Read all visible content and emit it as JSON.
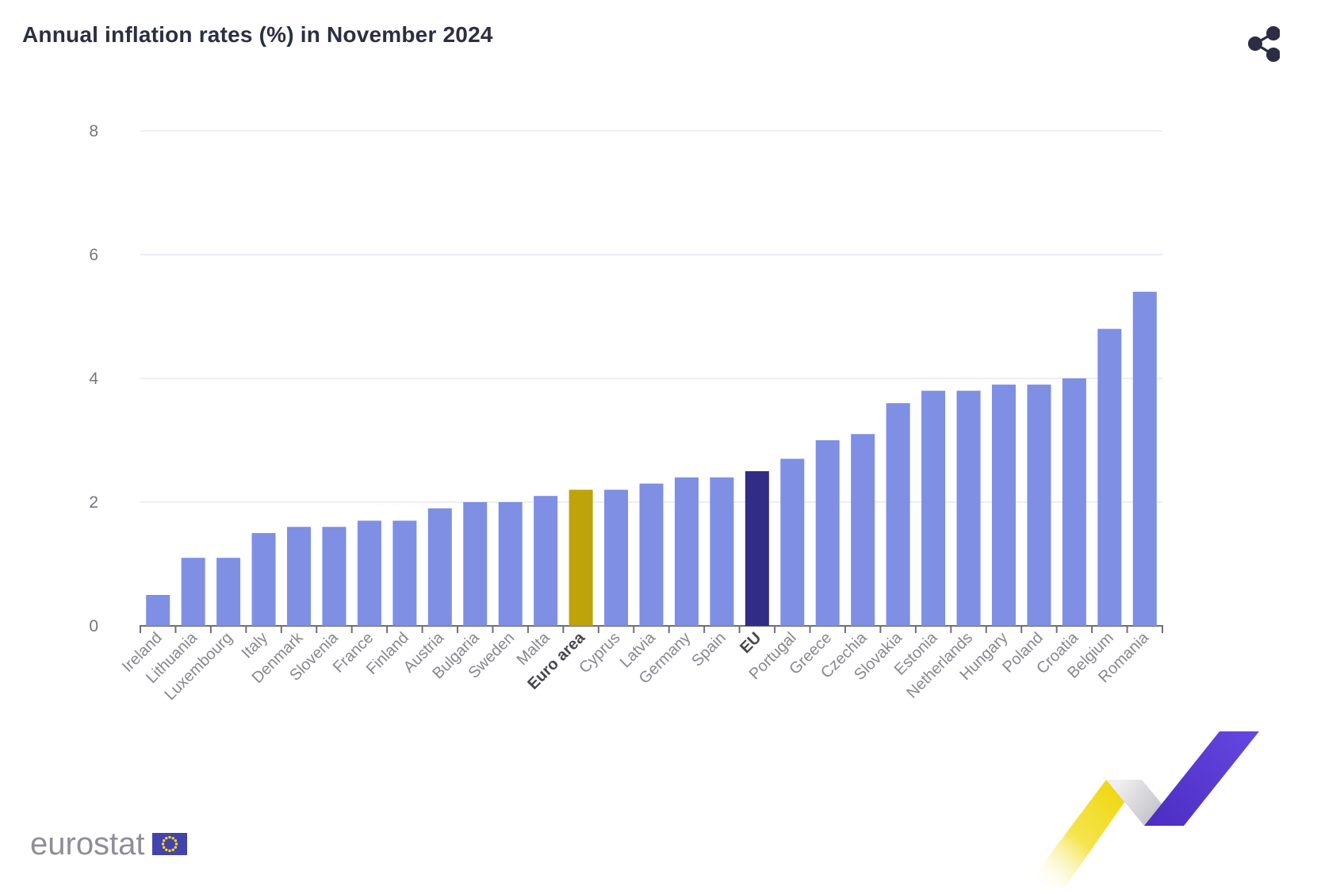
{
  "header": {
    "title": "Annual inflation rates (%) in November 2024"
  },
  "icons": {
    "share": "share-icon",
    "eu_flag": "eu-flag-icon"
  },
  "chart_data": {
    "type": "bar",
    "title": "Annual inflation rates (%) in November 2024",
    "categories": [
      "Ireland",
      "Lithuania",
      "Luxembourg",
      "Italy",
      "Denmark",
      "Slovenia",
      "France",
      "Finland",
      "Austria",
      "Bulgaria",
      "Sweden",
      "Malta",
      "Euro area",
      "Cyprus",
      "Latvia",
      "Germany",
      "Spain",
      "EU",
      "Portugal",
      "Greece",
      "Czechia",
      "Slovakia",
      "Estonia",
      "Netherlands",
      "Hungary",
      "Poland",
      "Croatia",
      "Belgium",
      "Romania"
    ],
    "values": [
      0.5,
      1.1,
      1.1,
      1.5,
      1.6,
      1.6,
      1.7,
      1.7,
      1.9,
      2.0,
      2.0,
      2.1,
      2.2,
      2.2,
      2.3,
      2.4,
      2.4,
      2.5,
      2.7,
      3.0,
      3.1,
      3.6,
      3.8,
      3.8,
      3.9,
      3.9,
      4.0,
      4.8,
      5.4
    ],
    "bar_colors": {
      "default": "#7e8fe4",
      "Euro area": "#bfa30a",
      "EU": "#312c85"
    },
    "bold_categories": [
      "Euro area",
      "EU"
    ],
    "xlabel": "",
    "ylabel": "",
    "yticks": [
      0,
      2,
      4,
      6,
      8
    ],
    "ylim": [
      0,
      8.3
    ],
    "grid": true,
    "legend_position": "none",
    "x_label_rotation": -45
  },
  "footer": {
    "logo_text": "eurostat"
  },
  "colors": {
    "title_text": "#2b2f42",
    "axis_text": "#75757e",
    "x_label_text": "#87878f",
    "x_label_bold_text": "#46464f",
    "gridline": "#e6e7f2",
    "axis_line": "#6f6f78",
    "logo_text": "#8e8e96",
    "flag_blue": "#4343ae",
    "flag_stars": "#ffd617",
    "share_icon": "#2b2d42",
    "ribbon_yellow": "#eed400",
    "ribbon_gray": "#c3c3ca",
    "ribbon_purple": "#5434d4"
  }
}
